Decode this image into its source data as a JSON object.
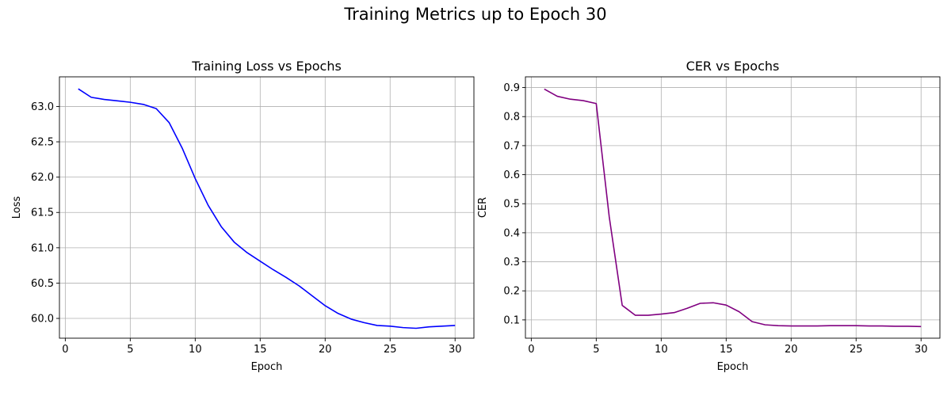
{
  "figure": {
    "suptitle": "Training Metrics up to Epoch 30"
  },
  "chart_data": [
    {
      "type": "line",
      "title": "Training Loss vs Epochs",
      "xlabel": "Epoch",
      "ylabel": "Loss",
      "xlim": [
        -0.45,
        31.45
      ],
      "ylim": [
        59.72,
        63.42
      ],
      "xticks": [
        0,
        5,
        10,
        15,
        20,
        25,
        30
      ],
      "yticks": [
        60.0,
        60.5,
        61.0,
        61.5,
        62.0,
        62.5,
        63.0
      ],
      "ytick_labels": [
        "60.0",
        "60.5",
        "61.0",
        "61.5",
        "62.0",
        "62.5",
        "63.0"
      ],
      "grid": true,
      "color": "#0000ff",
      "x": [
        1,
        2,
        3,
        4,
        5,
        6,
        7,
        8,
        9,
        10,
        11,
        12,
        13,
        14,
        15,
        16,
        17,
        18,
        19,
        20,
        21,
        22,
        23,
        24,
        25,
        26,
        27,
        28,
        29,
        30
      ],
      "y": [
        63.25,
        63.13,
        63.1,
        63.08,
        63.06,
        63.03,
        62.97,
        62.77,
        62.41,
        61.98,
        61.6,
        61.3,
        61.08,
        60.93,
        60.81,
        60.69,
        60.58,
        60.46,
        60.32,
        60.18,
        60.07,
        59.99,
        59.94,
        59.9,
        59.89,
        59.87,
        59.86,
        59.88,
        59.89,
        59.9
      ]
    },
    {
      "type": "line",
      "title": "CER vs Epochs",
      "xlabel": "Epoch",
      "ylabel": "CER",
      "xlim": [
        -0.45,
        31.45
      ],
      "ylim": [
        0.037,
        0.937
      ],
      "xticks": [
        0,
        5,
        10,
        15,
        20,
        25,
        30
      ],
      "yticks": [
        0.1,
        0.2,
        0.3,
        0.4,
        0.5,
        0.6,
        0.7,
        0.8,
        0.9
      ],
      "ytick_labels": [
        "0.1",
        "0.2",
        "0.3",
        "0.4",
        "0.5",
        "0.6",
        "0.7",
        "0.8",
        "0.9"
      ],
      "grid": true,
      "color": "#800080",
      "x": [
        1,
        2,
        3,
        4,
        5,
        6,
        7,
        8,
        9,
        10,
        11,
        12,
        13,
        14,
        15,
        16,
        17,
        18,
        19,
        20,
        21,
        22,
        23,
        24,
        25,
        26,
        27,
        28,
        29,
        30
      ],
      "y": [
        0.895,
        0.87,
        0.86,
        0.855,
        0.845,
        0.455,
        0.15,
        0.116,
        0.116,
        0.12,
        0.125,
        0.14,
        0.157,
        0.159,
        0.151,
        0.128,
        0.094,
        0.083,
        0.08,
        0.079,
        0.079,
        0.079,
        0.08,
        0.08,
        0.08,
        0.079,
        0.079,
        0.078,
        0.078,
        0.077
      ]
    }
  ]
}
